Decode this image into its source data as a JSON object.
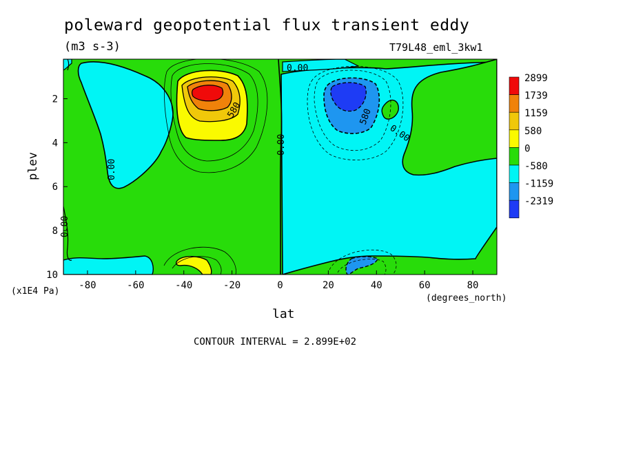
{
  "chart_data": {
    "type": "contour",
    "title": "poleward geopotential flux transient eddy",
    "units": "(m3 s-3)",
    "run_label": "T79L48_eml_3kw1",
    "xlabel": "lat",
    "xunits": "(degrees_north)",
    "ylabel": "plev",
    "yunits": "(x1E4 Pa)",
    "xlim": [
      -90,
      90
    ],
    "ylim": [
      10,
      0.2
    ],
    "x_ticks": [
      -80,
      -60,
      -40,
      -20,
      0,
      20,
      40,
      60,
      80
    ],
    "y_ticks": [
      2,
      4,
      6,
      8,
      10
    ],
    "contour_interval_text": "CONTOUR INTERVAL = 2.899E+02",
    "contour_labels": [
      "0.00",
      "580",
      "0.00",
      "580",
      "0.00",
      "0.00",
      "0.00",
      "0.00"
    ],
    "legend": [
      {
        "label": "2899",
        "color": "#f00a0a"
      },
      {
        "label": "1739",
        "color": "#f0820a"
      },
      {
        "label": "1159",
        "color": "#f0c80a"
      },
      {
        "label": "580",
        "color": "#fafa00"
      },
      {
        "label": "0",
        "color": "#28dc0a"
      },
      {
        "label": "-580",
        "color": "#00f5f5"
      },
      {
        "label": "-1159",
        "color": "#1e96f0"
      },
      {
        "label": "-2319",
        "color": "#1e3cf5"
      }
    ],
    "features": [
      {
        "kind": "max",
        "lat": -30,
        "plev": 1.6,
        "value": 2899
      },
      {
        "kind": "min",
        "lat": 30,
        "plev": 1.8,
        "value": -2319
      }
    ]
  }
}
